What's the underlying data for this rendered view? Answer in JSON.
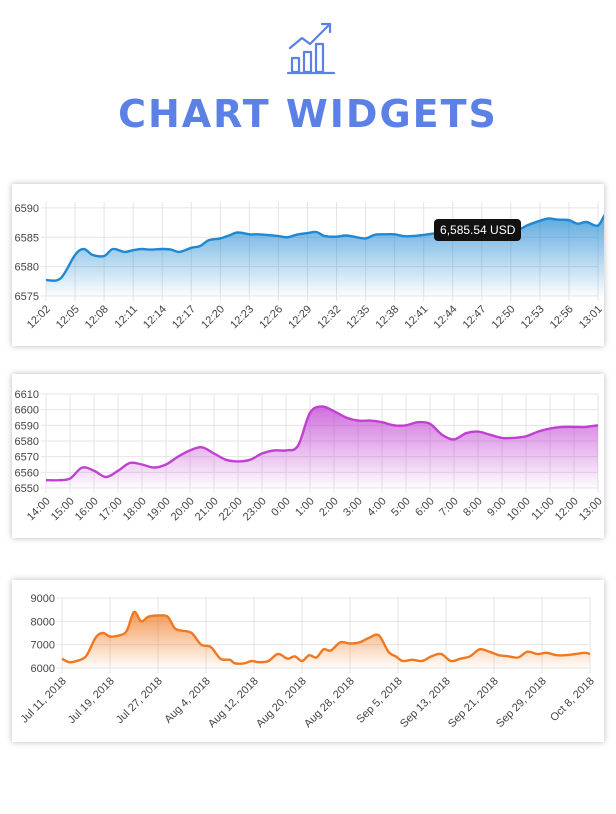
{
  "header": {
    "title": "CHART WIDGETS",
    "icon": "growth-chart-icon",
    "accent": "#5b80e6"
  },
  "chart_data": [
    {
      "type": "area",
      "color": "#1e88d2",
      "x_ticks": [
        "12:02",
        "12:05",
        "12:08",
        "12:11",
        "12:14",
        "12:17",
        "12:20",
        "12:23",
        "12:26",
        "12:29",
        "12:32",
        "12:35",
        "12:38",
        "12:41",
        "12:44",
        "12:47",
        "12:50",
        "12:53",
        "12:56",
        "13:01"
      ],
      "y_ticks": [
        6575,
        6580,
        6585,
        6590
      ],
      "ylim": [
        6575,
        6591
      ],
      "grid": true,
      "tooltip": "6,585.54 USD",
      "tooltip_x": 13.7,
      "series": [
        {
          "x": [
            0,
            0.5,
            1,
            1.3,
            1.6,
            2,
            2.3,
            2.7,
            3,
            3.3,
            3.6,
            4,
            4.3,
            4.6,
            5,
            5.3,
            5.6,
            6,
            6.3,
            6.6,
            7,
            7.3,
            7.6,
            8,
            8.3,
            8.6,
            9,
            9.3,
            9.6,
            10,
            10.3,
            10.6,
            11,
            11.3,
            11.6,
            12,
            12.3,
            12.6,
            13,
            13.3,
            13.6,
            14,
            14.3,
            14.6,
            15,
            15.3,
            15.6,
            16,
            16.3,
            16.6,
            17,
            17.3,
            17.6,
            18,
            18.3,
            18.6,
            19,
            19.3,
            19.6,
            20
          ],
          "y": [
            6577.7,
            6578,
            6582,
            6583,
            6582,
            6581.8,
            6583,
            6582.5,
            6582.8,
            6583,
            6582.9,
            6583,
            6582.9,
            6582.5,
            6583.2,
            6583.5,
            6584.5,
            6584.8,
            6585.3,
            6585.8,
            6585.5,
            6585.5,
            6585.4,
            6585.2,
            6585,
            6585.4,
            6585.7,
            6585.9,
            6585.2,
            6585.1,
            6585.3,
            6585.1,
            6584.8,
            6585.4,
            6585.5,
            6585.5,
            6585.2,
            6585.2,
            6585.4,
            6585.6,
            6585.7,
            6585.6,
            6585.4,
            6585.7,
            6586,
            6585.9,
            6585.6,
            6586.2,
            6586.4,
            6587.1,
            6587.8,
            6588.2,
            6588,
            6587.9,
            6587.3,
            6587.6,
            6587,
            6589.2,
            6588.2,
            6588.3
          ]
        }
      ]
    },
    {
      "type": "area",
      "color": "#c040d2",
      "x_ticks": [
        "14:00",
        "15:00",
        "16:00",
        "17:00",
        "18:00",
        "19:00",
        "20:00",
        "21:00",
        "22:00",
        "23:00",
        "0:00",
        "1:00",
        "2:00",
        "3:00",
        "4:00",
        "5:00",
        "6:00",
        "7:00",
        "8:00",
        "9:00",
        "10:00",
        "11:00",
        "12:00",
        "13:00"
      ],
      "y_ticks": [
        6550,
        6560,
        6570,
        6580,
        6590,
        6600,
        6610
      ],
      "ylim": [
        6550,
        6610
      ],
      "grid": true,
      "series": [
        {
          "x": [
            0,
            0.5,
            1,
            1.5,
            2,
            2.5,
            3,
            3.5,
            4,
            4.5,
            5,
            5.5,
            6,
            6.5,
            7,
            7.5,
            8,
            8.5,
            9,
            9.5,
            10,
            10.5,
            11,
            11.5,
            12,
            12.5,
            13,
            13.5,
            14,
            14.5,
            15,
            15.5,
            16,
            16.5,
            17,
            17.5,
            18,
            18.5,
            19,
            19.5,
            20,
            20.5,
            21,
            21.5,
            22,
            22.5,
            23
          ],
          "y": [
            6555,
            6555,
            6556,
            6563,
            6561,
            6557,
            6561,
            6566,
            6565,
            6563,
            6565,
            6570,
            6574,
            6576,
            6572,
            6568,
            6567,
            6568,
            6572,
            6574,
            6574,
            6577,
            6598,
            6602,
            6599,
            6595,
            6593,
            6593,
            6592,
            6590,
            6590,
            6592,
            6591,
            6584,
            6581,
            6585,
            6586,
            6584,
            6582,
            6582,
            6583,
            6586,
            6588,
            6589,
            6589,
            6589,
            6590
          ]
        }
      ]
    },
    {
      "type": "area",
      "color": "#f07820",
      "x_ticks": [
        "Jul 11, 2018",
        "Jul 19, 2018",
        "Jul 27, 2018",
        "Aug 4, 2018",
        "Aug 12, 2018",
        "Aug 20, 2018",
        "Aug 28, 2018",
        "Sep 5, 2018",
        "Sep 13, 2018",
        "Sep 21, 2018",
        "Sep 29, 2018",
        "Oct 8, 2018"
      ],
      "y_ticks": [
        6000,
        7000,
        8000,
        9000
      ],
      "ylim": [
        6000,
        9000
      ],
      "grid": true,
      "series": [
        {
          "x": [
            0,
            0.15,
            0.3,
            0.5,
            0.7,
            0.85,
            1,
            1.2,
            1.35,
            1.5,
            1.65,
            1.8,
            2,
            2.2,
            2.35,
            2.5,
            2.7,
            2.9,
            3.1,
            3.3,
            3.5,
            3.6,
            3.8,
            3.95,
            4.1,
            4.3,
            4.5,
            4.7,
            4.85,
            5,
            5.15,
            5.3,
            5.45,
            5.6,
            5.8,
            6,
            6.2,
            6.4,
            6.6,
            6.8,
            6.95,
            7.1,
            7.3,
            7.5,
            7.7,
            7.9,
            8.1,
            8.3,
            8.5,
            8.7,
            8.9,
            9.1,
            9.3,
            9.5,
            9.7,
            9.9,
            10.1,
            10.3,
            10.5,
            10.7,
            10.9,
            11
          ],
          "y": [
            6400,
            6250,
            6300,
            6500,
            7300,
            7500,
            7350,
            7400,
            7600,
            8400,
            8000,
            8200,
            8250,
            8200,
            7700,
            7600,
            7500,
            7000,
            6900,
            6400,
            6350,
            6200,
            6200,
            6300,
            6250,
            6300,
            6600,
            6400,
            6500,
            6300,
            6550,
            6450,
            6800,
            6750,
            7100,
            7050,
            7100,
            7300,
            7400,
            6700,
            6500,
            6300,
            6350,
            6300,
            6500,
            6600,
            6300,
            6400,
            6500,
            6800,
            6700,
            6550,
            6500,
            6450,
            6700,
            6600,
            6650,
            6550,
            6550,
            6600,
            6650,
            6600
          ]
        }
      ]
    }
  ]
}
